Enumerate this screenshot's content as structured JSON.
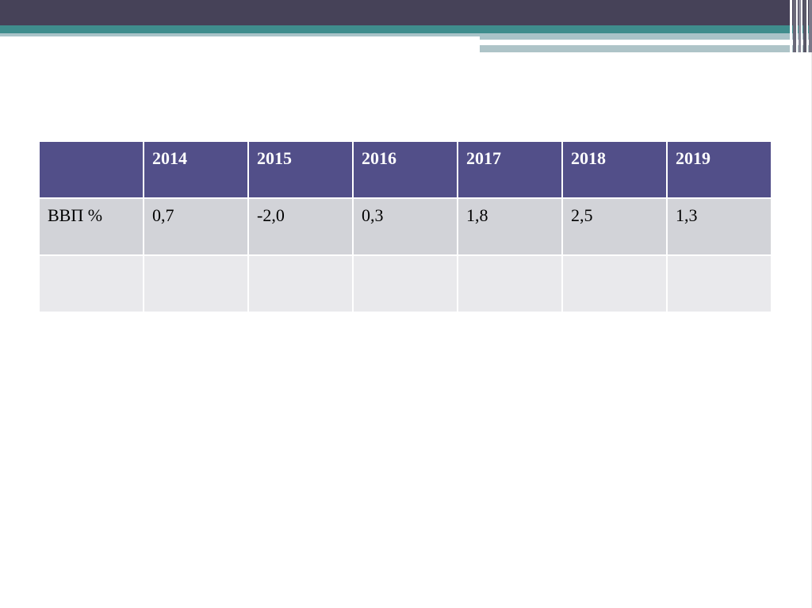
{
  "theme": {
    "header_dark": "#464258",
    "header_teal": "#3f8d8d",
    "header_light": "#a9c3c8",
    "table_header_bg": "#524f89",
    "row_odd_bg": "#d2d3d8",
    "row_even_bg": "#e9e9ec"
  },
  "table": {
    "columns": [
      "",
      "2014",
      "2015",
      "2016",
      "2017",
      "2018",
      "2019"
    ],
    "rows": [
      [
        "ВВП %",
        "0,7",
        "-2,0",
        "0,3",
        "1,8",
        "2,5",
        "1,3"
      ],
      [
        "",
        "",
        "",
        "",
        "",
        "",
        ""
      ]
    ]
  }
}
